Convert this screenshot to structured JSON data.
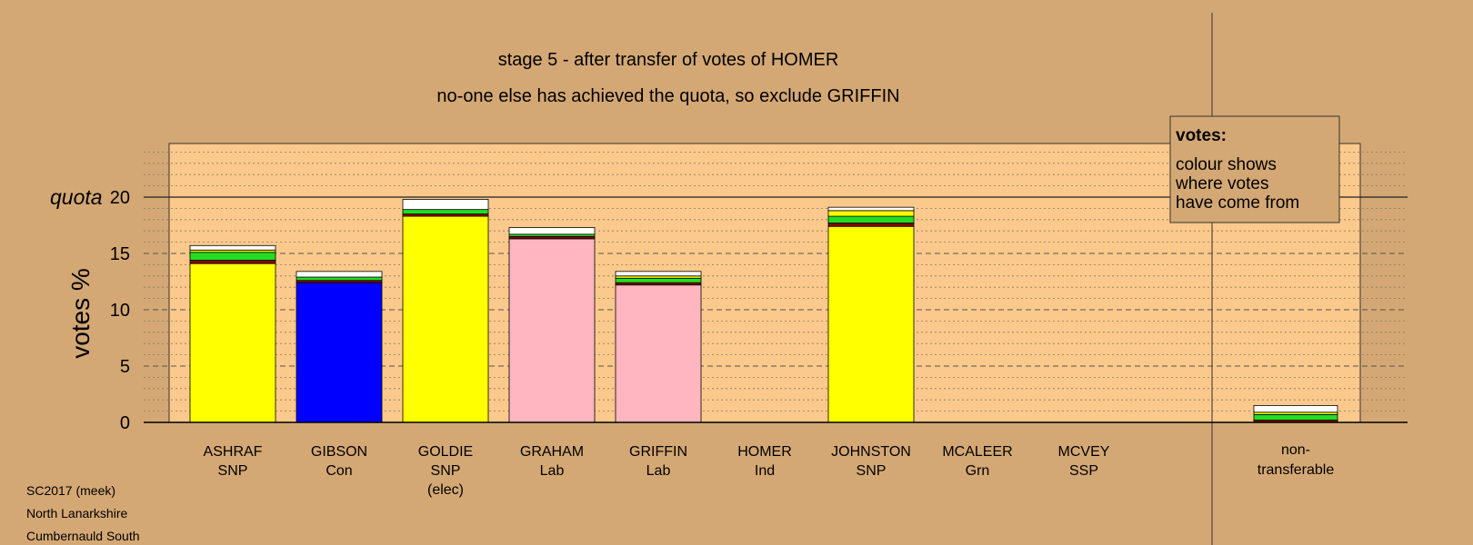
{
  "chart_data": {
    "type": "bar",
    "stacked": true,
    "title": "stage 5 - after transfer of votes of HOMER",
    "subtitle": "no-one else has achieved the quota, so exclude GRIFFIN",
    "ylabel": "votes %",
    "quota_label": "quota",
    "quota": 20,
    "ylim": [
      0,
      25
    ],
    "yticks": [
      0,
      5,
      10,
      15,
      20
    ],
    "grid": "dashed every 5, dotted every 1",
    "categories": [
      {
        "name": "ASHRAF",
        "party": "SNP",
        "note": ""
      },
      {
        "name": "GIBSON",
        "party": "Con",
        "note": ""
      },
      {
        "name": "GOLDIE",
        "party": "SNP",
        "note": "(elec)"
      },
      {
        "name": "GRAHAM",
        "party": "Lab",
        "note": ""
      },
      {
        "name": "GRIFFIN",
        "party": "Lab",
        "note": ""
      },
      {
        "name": "HOMER",
        "party": "Ind",
        "note": ""
      },
      {
        "name": "JOHNSTON",
        "party": "SNP",
        "note": ""
      },
      {
        "name": "MCALEER",
        "party": "Grn",
        "note": ""
      },
      {
        "name": "MCVEY",
        "party": "SSP",
        "note": ""
      }
    ],
    "non_transferable": {
      "label_line1": "non-",
      "label_line2": "transferable"
    },
    "stacks": [
      [
        {
          "value": 14.1,
          "color": "#ffff00"
        },
        {
          "value": 0.3,
          "color": "#8b0000"
        },
        {
          "value": 0.7,
          "color": "#22dd22"
        },
        {
          "value": 0.2,
          "color": "#ffff00"
        },
        {
          "value": 0.4,
          "color": "#ffffff"
        }
      ],
      [
        {
          "value": 12.4,
          "color": "#0000ff"
        },
        {
          "value": 0.2,
          "color": "#8b0000"
        },
        {
          "value": 0.3,
          "color": "#22dd22"
        },
        {
          "value": 0.5,
          "color": "#ffffff"
        }
      ],
      [
        {
          "value": 18.3,
          "color": "#ffff00"
        },
        {
          "value": 0.2,
          "color": "#8b0000"
        },
        {
          "value": 0.4,
          "color": "#22dd22"
        },
        {
          "value": 0.9,
          "color": "#ffffff"
        }
      ],
      [
        {
          "value": 16.3,
          "color": "#ffb6c1"
        },
        {
          "value": 0.2,
          "color": "#8b0000"
        },
        {
          "value": 0.2,
          "color": "#22dd22"
        },
        {
          "value": 0.6,
          "color": "#ffffff"
        }
      ],
      [
        {
          "value": 12.2,
          "color": "#ffb6c1"
        },
        {
          "value": 0.2,
          "color": "#8b0000"
        },
        {
          "value": 0.4,
          "color": "#22dd22"
        },
        {
          "value": 0.2,
          "color": "#ffff00"
        },
        {
          "value": 0.4,
          "color": "#ffffff"
        }
      ],
      [],
      [
        {
          "value": 17.4,
          "color": "#ffff00"
        },
        {
          "value": 0.3,
          "color": "#8b0000"
        },
        {
          "value": 0.6,
          "color": "#22dd22"
        },
        {
          "value": 0.5,
          "color": "#ffff00"
        },
        {
          "value": 0.3,
          "color": "#ffffff"
        }
      ],
      [],
      []
    ],
    "non_transferable_stack": [
      {
        "value": 0.2,
        "color": "#8b0000"
      },
      {
        "value": 0.5,
        "color": "#22dd22"
      },
      {
        "value": 0.2,
        "color": "#ffff00"
      },
      {
        "value": 0.6,
        "color": "#ffffff"
      }
    ],
    "legend": {
      "title": "votes:",
      "lines": [
        "colour shows",
        "where votes",
        "have come from"
      ],
      "placement": "top-right"
    }
  },
  "footer": {
    "line1": "SC2017 (meek)",
    "line2": "North Lanarkshire",
    "line3": "Cumbernauld South"
  }
}
